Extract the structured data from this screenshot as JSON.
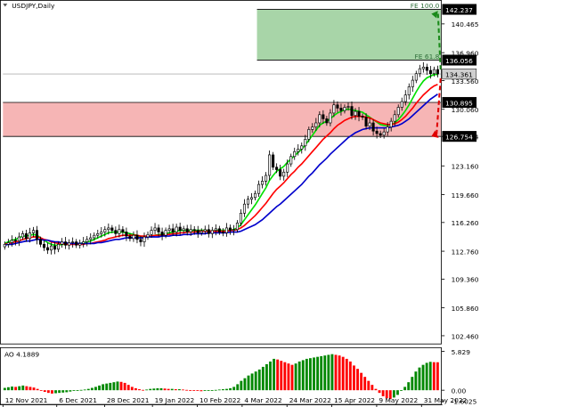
{
  "chart_data": [
    {
      "type": "candlestick",
      "title": "USDJPY,Daily",
      "price_axis": {
        "ticks": [
          "140.465",
          "136.960",
          "133.560",
          "130.060",
          "126.754",
          "123.160",
          "119.660",
          "116.260",
          "112.760",
          "109.360",
          "105.860",
          "102.460"
        ],
        "ylim": [
          101.5,
          143.2
        ]
      },
      "x_labels": [
        "12 Nov 2021",
        "6 Dec 2021",
        "28 Dec 2021",
        "19 Jan 2022",
        "10 Feb 2022",
        "4 Mar 2022",
        "24 Mar 2022",
        "15 Apr 2022",
        "9 May 2022",
        "31 May 2022"
      ],
      "price_tags": [
        {
          "value": 142.237,
          "label": "142.237",
          "style": "black"
        },
        {
          "value": 136.056,
          "label": "136.056",
          "style": "black"
        },
        {
          "value": 134.361,
          "label": "134.361",
          "style": "gray"
        },
        {
          "value": 130.895,
          "label": "130.895",
          "style": "black"
        },
        {
          "value": 126.754,
          "label": "126.754",
          "style": "black"
        }
      ],
      "zones": [
        {
          "name": "target",
          "from": 136.056,
          "to": 142.237,
          "color": "#a8d5a8",
          "x_start_index": 71
        },
        {
          "name": "support",
          "from": 126.754,
          "to": 130.895,
          "color": "#f6b5b5",
          "x_start_index": 0
        }
      ],
      "annotations": [
        {
          "text": "FE 100.0",
          "value": 142.237
        },
        {
          "text": "FE 61.8",
          "value": 136.056
        }
      ],
      "candles_close": [
        113.6,
        113.8,
        114.1,
        114.0,
        114.5,
        114.9,
        114.3,
        115.0,
        115.3,
        114.2,
        113.6,
        113.2,
        112.9,
        113.4,
        113.0,
        113.6,
        113.9,
        113.5,
        113.8,
        113.9,
        113.5,
        113.7,
        113.9,
        114.2,
        114.4,
        114.7,
        114.9,
        115.1,
        115.4,
        115.6,
        115.3,
        114.9,
        115.4,
        115.1,
        114.6,
        114.3,
        114.7,
        114.2,
        113.9,
        114.5,
        114.8,
        115.3,
        115.6,
        115.1,
        114.7,
        115.3,
        115.5,
        115.1,
        115.7,
        115.3,
        115.5,
        115.1,
        115.4,
        115.3,
        115.0,
        115.2,
        115.4,
        114.9,
        115.3,
        115.5,
        115.1,
        115.0,
        115.6,
        115.3,
        115.4,
        116.2,
        117.4,
        118.5,
        119.1,
        119.3,
        119.8,
        120.9,
        121.3,
        122.0,
        124.5,
        123.0,
        122.7,
        121.9,
        122.4,
        123.4,
        124.3,
        124.9,
        125.2,
        125.6,
        126.4,
        127.6,
        127.9,
        128.4,
        129.4,
        128.9,
        128.4,
        129.6,
        130.6,
        130.2,
        129.9,
        130.3,
        130.4,
        129.3,
        129.8,
        129.2,
        129.1,
        128.0,
        128.4,
        127.4,
        127.1,
        126.9,
        127.3,
        127.9,
        128.6,
        129.4,
        130.3,
        131.0,
        131.8,
        132.8,
        133.6,
        134.4,
        135.0,
        135.2,
        134.8,
        134.4,
        134.9,
        134.36
      ],
      "moving_averages": [
        {
          "color": "#00e000",
          "values": [
            113.7,
            113.9,
            114.1,
            114.2,
            114.4,
            114.6,
            114.6,
            114.7,
            114.8,
            114.7,
            114.4,
            114.1,
            113.8,
            113.6,
            113.5,
            113.5,
            113.6,
            113.6,
            113.6,
            113.7,
            113.7,
            113.7,
            113.8,
            113.9,
            114.0,
            114.2,
            114.4,
            114.6,
            114.8,
            115.0,
            115.1,
            115.1,
            115.1,
            115.1,
            115.0,
            114.9,
            114.8,
            114.7,
            114.5,
            114.5,
            114.5,
            114.6,
            114.7,
            114.8,
            114.8,
            114.9,
            115.0,
            115.1,
            115.2,
            115.3,
            115.3,
            115.3,
            115.3,
            115.3,
            115.3,
            115.3,
            115.3,
            115.2,
            115.2,
            115.3,
            115.3,
            115.3,
            115.3,
            115.3,
            115.4,
            115.6,
            116.0,
            116.6,
            117.2,
            117.8,
            118.4,
            119.1,
            119.8,
            120.5,
            121.4,
            122.0,
            122.5,
            122.8,
            123.1,
            123.6,
            124.0,
            124.4,
            124.8,
            125.2,
            125.7,
            126.3,
            126.9,
            127.5,
            128.1,
            128.4,
            128.6,
            128.9,
            129.3,
            129.6,
            129.8,
            130.0,
            130.1,
            130.0,
            129.9,
            129.8,
            129.7,
            129.4,
            129.1,
            128.8,
            128.5,
            128.2,
            128.1,
            128.1,
            128.2,
            128.4,
            128.8,
            129.3,
            129.9,
            130.6,
            131.4,
            132.2,
            132.9,
            133.5,
            133.9,
            134.1,
            134.3,
            134.3
          ]
        },
        {
          "color": "#ff0000",
          "values": [
            113.6,
            113.7,
            113.8,
            113.9,
            114.0,
            114.2,
            114.3,
            114.4,
            114.5,
            114.5,
            114.4,
            114.2,
            114.1,
            113.9,
            113.8,
            113.7,
            113.7,
            113.6,
            113.6,
            113.6,
            113.6,
            113.6,
            113.6,
            113.7,
            113.7,
            113.8,
            113.9,
            114.0,
            114.1,
            114.3,
            114.4,
            114.5,
            114.6,
            114.7,
            114.7,
            114.7,
            114.7,
            114.7,
            114.6,
            114.6,
            114.6,
            114.6,
            114.7,
            114.7,
            114.7,
            114.8,
            114.8,
            114.9,
            114.9,
            115.0,
            115.0,
            115.1,
            115.1,
            115.1,
            115.2,
            115.2,
            115.2,
            115.2,
            115.2,
            115.2,
            115.2,
            115.2,
            115.2,
            115.3,
            115.3,
            115.4,
            115.6,
            115.9,
            116.3,
            116.7,
            117.1,
            117.6,
            118.1,
            118.6,
            119.2,
            119.8,
            120.3,
            120.7,
            121.1,
            121.6,
            122.1,
            122.5,
            123.0,
            123.4,
            123.9,
            124.4,
            124.9,
            125.4,
            125.9,
            126.4,
            126.8,
            127.2,
            127.7,
            128.1,
            128.4,
            128.7,
            128.9,
            129.1,
            129.2,
            129.2,
            129.2,
            129.1,
            129.0,
            128.8,
            128.6,
            128.4,
            128.3,
            128.2,
            128.2,
            128.3,
            128.5,
            128.8,
            129.2,
            129.7,
            130.2,
            130.8,
            131.3,
            131.8,
            132.2,
            132.6,
            132.9,
            133.1
          ]
        },
        {
          "color": "#0000cc",
          "values": [
            113.5,
            113.6,
            113.6,
            113.7,
            113.8,
            113.9,
            114.0,
            114.0,
            114.1,
            114.2,
            114.2,
            114.1,
            114.1,
            114.0,
            113.9,
            113.9,
            113.8,
            113.8,
            113.7,
            113.7,
            113.7,
            113.7,
            113.7,
            113.7,
            113.7,
            113.7,
            113.8,
            113.8,
            113.9,
            114.0,
            114.1,
            114.2,
            114.2,
            114.3,
            114.4,
            114.4,
            114.4,
            114.4,
            114.4,
            114.4,
            114.5,
            114.5,
            114.5,
            114.5,
            114.6,
            114.6,
            114.6,
            114.7,
            114.7,
            114.7,
            114.8,
            114.8,
            114.8,
            114.9,
            114.9,
            114.9,
            114.9,
            115.0,
            115.0,
            115.0,
            115.0,
            115.0,
            115.0,
            115.1,
            115.1,
            115.1,
            115.2,
            115.4,
            115.6,
            115.8,
            116.0,
            116.3,
            116.6,
            117.0,
            117.4,
            117.8,
            118.2,
            118.5,
            118.9,
            119.3,
            119.7,
            120.1,
            120.5,
            120.9,
            121.4,
            121.9,
            122.3,
            122.8,
            123.3,
            123.7,
            124.1,
            124.6,
            125.0,
            125.4,
            125.8,
            126.2,
            126.6,
            126.9,
            127.2,
            127.4,
            127.6,
            127.7,
            127.8,
            127.8,
            127.8,
            127.8,
            127.8,
            127.8,
            127.9,
            128.0,
            128.1,
            128.3,
            128.6,
            128.9,
            129.3,
            129.7,
            130.1,
            130.5,
            130.9,
            131.3,
            131.6,
            131.9
          ]
        }
      ]
    },
    {
      "type": "bar",
      "title": "AO 4.1889",
      "y_ticks": [
        "5.829",
        "0.00",
        "-1.6025"
      ],
      "ylim": [
        -1.85,
        6.1
      ],
      "colors": {
        "up": "#008800",
        "down": "#ff0000"
      },
      "values": [
        0.35,
        0.45,
        0.55,
        0.5,
        0.6,
        0.7,
        0.6,
        0.5,
        0.4,
        0.2,
        -0.05,
        -0.25,
        -0.4,
        -0.5,
        -0.45,
        -0.4,
        -0.35,
        -0.3,
        -0.2,
        -0.1,
        0.0,
        0.05,
        0.1,
        0.2,
        0.35,
        0.5,
        0.7,
        0.9,
        1.0,
        1.1,
        1.2,
        1.3,
        1.25,
        1.1,
        0.8,
        0.5,
        0.3,
        0.15,
        0.05,
        0.1,
        0.2,
        0.25,
        0.3,
        0.3,
        0.25,
        0.2,
        0.2,
        0.15,
        0.15,
        0.1,
        0.05,
        0.0,
        -0.05,
        -0.1,
        -0.15,
        -0.1,
        -0.05,
        0.0,
        0.05,
        0.1,
        0.15,
        0.2,
        0.3,
        0.5,
        0.9,
        1.4,
        1.8,
        2.2,
        2.5,
        2.8,
        3.1,
        3.5,
        3.9,
        4.3,
        4.7,
        4.6,
        4.4,
        4.2,
        4.0,
        3.8,
        4.0,
        4.3,
        4.5,
        4.7,
        4.8,
        4.9,
        5.0,
        5.1,
        5.2,
        5.3,
        5.4,
        5.3,
        5.2,
        5.0,
        4.7,
        4.3,
        3.7,
        3.2,
        2.6,
        2.0,
        1.4,
        0.8,
        0.2,
        -0.4,
        -0.9,
        -1.2,
        -1.3,
        -1.1,
        -0.7,
        -0.1,
        0.5,
        1.2,
        2.0,
        2.8,
        3.4,
        3.8,
        4.1,
        4.25,
        4.2,
        4.19
      ]
    }
  ]
}
